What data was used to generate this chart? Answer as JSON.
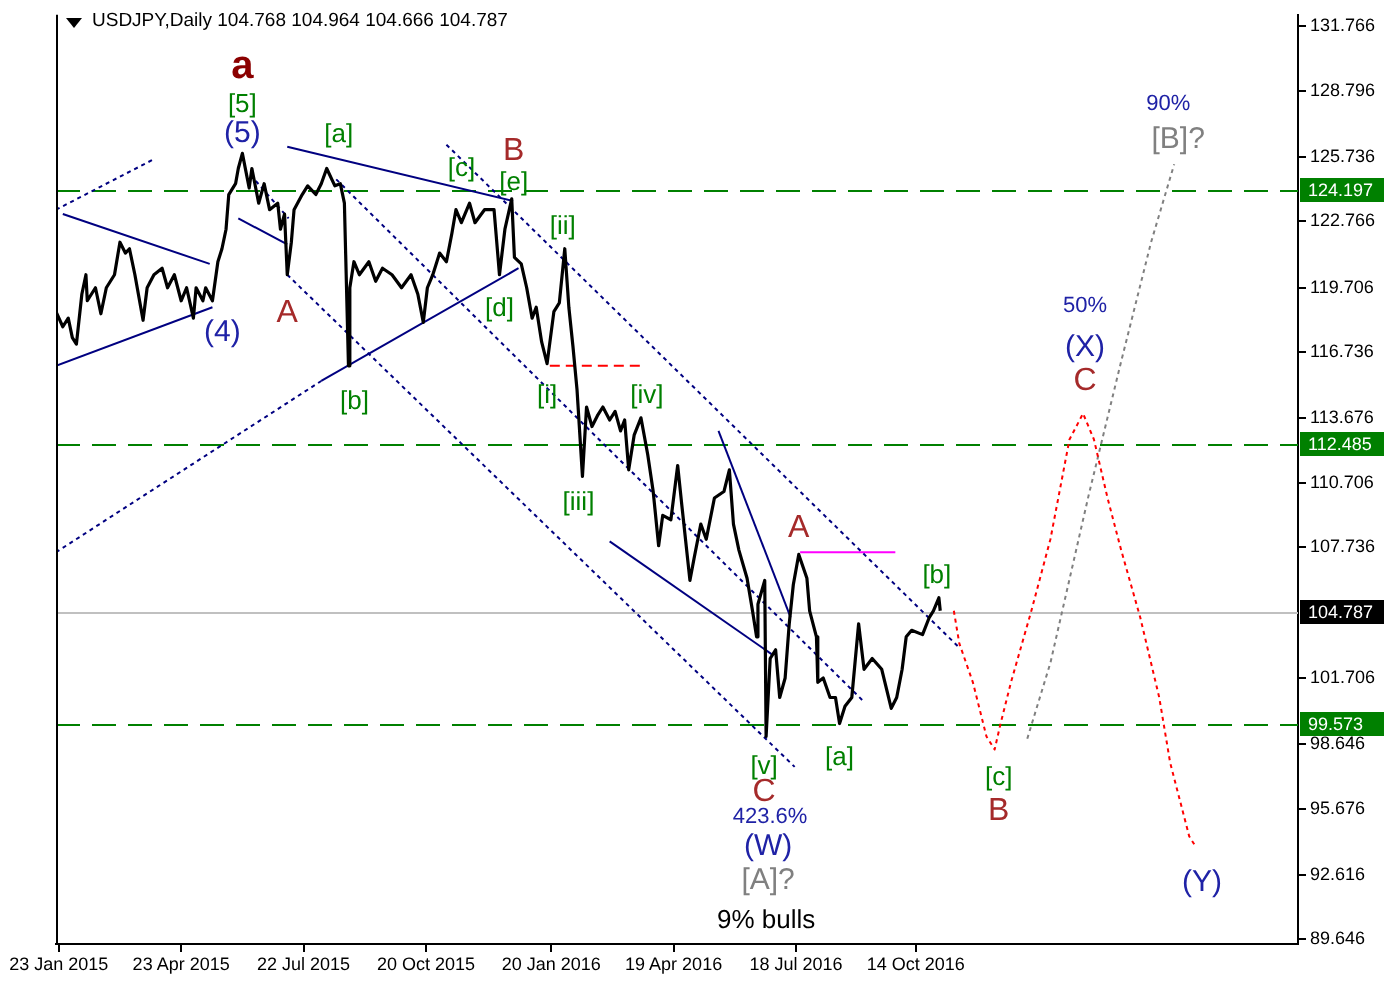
{
  "chart_data": {
    "type": "line",
    "title": "USDJPY,Daily 104.768 104.964 104.666 104.787",
    "xlim": [
      "2015-01-21",
      "2017-07-22"
    ],
    "xticks": [
      {
        "value": "2015-01-23",
        "label": "23 Jan 2015"
      },
      {
        "value": "2015-04-23",
        "label": "23 Apr 2015"
      },
      {
        "value": "2015-07-22",
        "label": "22 Jul 2015"
      },
      {
        "value": "2015-10-20",
        "label": "20 Oct 2015"
      },
      {
        "value": "2016-01-20",
        "label": "20 Jan 2016"
      },
      {
        "value": "2016-04-19",
        "label": "19 Apr 2016"
      },
      {
        "value": "2016-07-18",
        "label": "18 Jul 2016"
      },
      {
        "value": "2016-10-14",
        "label": "14 Oct 2016"
      }
    ],
    "ylim": [
      89.43,
      132.29
    ],
    "yticks": [
      131.766,
      128.796,
      125.736,
      122.766,
      119.706,
      116.736,
      113.676,
      110.706,
      107.736,
      101.706,
      98.646,
      95.676,
      92.616,
      89.646
    ],
    "series": [
      {
        "color": "#000000",
        "x": [
          "2015-01-21",
          "2015-01-26",
          "2015-01-30",
          "2015-02-02",
          "2015-02-05",
          "2015-02-09",
          "2015-02-12",
          "2015-02-13",
          "2015-02-19",
          "2015-02-23",
          "2015-02-27",
          "2015-03-05",
          "2015-03-09",
          "2015-03-13",
          "2015-03-16",
          "2015-03-20",
          "2015-03-26",
          "2015-03-29",
          "2015-04-03",
          "2015-04-09",
          "2015-04-13",
          "2015-04-18",
          "2015-04-23",
          "2015-04-27",
          "2015-05-02",
          "2015-05-04",
          "2015-05-09",
          "2015-05-11",
          "2015-05-16",
          "2015-05-20",
          "2015-05-23",
          "2015-05-26",
          "2015-05-28",
          "2015-06-02",
          "2015-06-04",
          "2015-06-07",
          "2015-06-12",
          "2015-06-14",
          "2015-06-19",
          "2015-06-23",
          "2015-06-27",
          "2015-07-03",
          "2015-07-05",
          "2015-07-08",
          "2015-07-10",
          "2015-07-13",
          "2015-07-15",
          "2015-07-21",
          "2015-07-25",
          "2015-07-31",
          "2015-08-04",
          "2015-08-08",
          "2015-08-14",
          "2015-08-18",
          "2015-08-21",
          "2015-08-24",
          "2015-08-25",
          "2015-08-28",
          "2015-09-01",
          "2015-09-08",
          "2015-09-13",
          "2015-09-18",
          "2015-09-25",
          "2015-10-02",
          "2015-10-09",
          "2015-10-14",
          "2015-10-18",
          "2015-10-21",
          "2015-10-25",
          "2015-10-30",
          "2015-11-04",
          "2015-11-08",
          "2015-11-11",
          "2015-11-15",
          "2015-11-21",
          "2015-11-25",
          "2015-12-02",
          "2015-12-09",
          "2015-12-13",
          "2015-12-17",
          "2015-12-22",
          "2015-12-24",
          "2015-12-29",
          "2016-01-02",
          "2016-01-06",
          "2016-01-09",
          "2016-01-13",
          "2016-01-17",
          "2016-01-22",
          "2016-01-26",
          "2016-01-30",
          "2016-02-02",
          "2016-02-05",
          "2016-02-08",
          "2016-02-12",
          "2016-02-15",
          "2016-02-19",
          "2016-02-23",
          "2016-02-27",
          "2016-03-03",
          "2016-03-07",
          "2016-03-11",
          "2016-03-14",
          "2016-03-17",
          "2016-03-21",
          "2016-03-26",
          "2016-03-31",
          "2016-04-04",
          "2016-04-08",
          "2016-04-11",
          "2016-04-17",
          "2016-04-22",
          "2016-04-25",
          "2016-05-01",
          "2016-05-04",
          "2016-05-09",
          "2016-05-13",
          "2016-05-19",
          "2016-05-26",
          "2016-05-30",
          "2016-06-02",
          "2016-06-06",
          "2016-06-12",
          "2016-06-16",
          "2016-06-19",
          "2016-06-20",
          "2016-06-25",
          "2016-06-26",
          "2016-06-29",
          "2016-07-03",
          "2016-07-06",
          "2016-07-10",
          "2016-07-13",
          "2016-07-16",
          "2016-07-20",
          "2016-07-26",
          "2016-07-28",
          "2016-08-02",
          "2016-08-03",
          "2016-08-07",
          "2016-08-12",
          "2016-08-16",
          "2016-08-19",
          "2016-08-23",
          "2016-08-28",
          "2016-09-02",
          "2016-09-06",
          "2016-09-12",
          "2016-09-19",
          "2016-09-26",
          "2016-09-30",
          "2016-10-04",
          "2016-10-07",
          "2016-10-11",
          "2016-10-19",
          "2016-10-24",
          "2016-10-27",
          "2016-10-31",
          "2016-11-01"
        ],
        "values": [
          118.6,
          117.9,
          118.3,
          117.4,
          117.1,
          119.4,
          120.3,
          119.1,
          119.7,
          118.5,
          119.7,
          120.3,
          121.8,
          121.3,
          121.5,
          120.3,
          118.2,
          119.7,
          120.3,
          120.6,
          119.7,
          120.3,
          119.1,
          119.7,
          118.3,
          119.7,
          119.1,
          119.7,
          119.1,
          120.9,
          121.5,
          122.4,
          124.0,
          124.5,
          125.2,
          125.9,
          124.3,
          125.2,
          123.6,
          124.5,
          123.3,
          123.6,
          122.4,
          123.1,
          120.3,
          121.8,
          123.3,
          124.0,
          124.4,
          124.0,
          124.5,
          125.2,
          124.4,
          124.5,
          123.6,
          116.1,
          119.7,
          120.9,
          120.3,
          120.9,
          120.0,
          120.6,
          120.3,
          119.7,
          120.3,
          119.4,
          118.1,
          119.7,
          120.3,
          121.3,
          120.9,
          122.2,
          123.3,
          122.7,
          123.6,
          122.7,
          123.3,
          123.3,
          120.3,
          122.4,
          123.8,
          121.1,
          120.8,
          119.7,
          118.3,
          118.8,
          117.2,
          116.2,
          118.6,
          119.0,
          121.5,
          118.8,
          117.0,
          115.0,
          111.0,
          114.2,
          113.3,
          113.8,
          114.2,
          113.6,
          114.0,
          113.1,
          113.6,
          111.3,
          112.9,
          113.7,
          112.0,
          110.3,
          107.8,
          109.2,
          109.0,
          111.5,
          109.7,
          106.2,
          107.2,
          108.8,
          108.1,
          110.0,
          110.3,
          111.3,
          108.8,
          107.6,
          106.3,
          104.8,
          103.6,
          105.1,
          106.2,
          99.0,
          102.6,
          103.0,
          100.8,
          101.7,
          104.2,
          106.0,
          107.4,
          106.3,
          104.8,
          103.6,
          101.5,
          101.7,
          100.8,
          100.8,
          99.6,
          100.4,
          100.8,
          104.2,
          102.1,
          102.6,
          102.1,
          100.3,
          100.8,
          102.1,
          103.6,
          103.9,
          103.7,
          104.5,
          104.8,
          105.4,
          104.8
        ]
      },
      {
        "color": "#000080",
        "x": [
          "2015-01-26",
          "2015-05-14"
        ],
        "values": [
          123.1,
          120.8
        ]
      },
      {
        "color": "#000080",
        "x": [
          "2015-01-21",
          "2015-05-16"
        ],
        "values": [
          116.1,
          118.8
        ]
      },
      {
        "color": "#000080",
        "line_style": "dotted",
        "x": [
          "2015-01-21",
          "2015-04-02"
        ],
        "values": [
          123.3,
          125.6
        ]
      },
      {
        "color": "#000080",
        "line_style": "dotted",
        "x": [
          "2015-06-13",
          "2015-07-11"
        ],
        "values": [
          124.9,
          122.9
        ]
      },
      {
        "color": "#000080",
        "x": [
          "2015-06-04",
          "2015-07-10"
        ],
        "values": [
          122.9,
          121.7
        ]
      },
      {
        "color": "#000080",
        "x": [
          "2015-07-10",
          "2015-12-23"
        ],
        "values": [
          126.2,
          123.7
        ]
      },
      {
        "color": "#000080",
        "x": [
          "2015-08-04",
          "2015-12-27"
        ],
        "values": [
          115.4,
          120.6
        ]
      },
      {
        "color": "#000080",
        "line_style": "dotted",
        "x": [
          "2015-01-21",
          "2015-08-04"
        ],
        "values": [
          107.5,
          115.4
        ]
      },
      {
        "color": "#000080",
        "line_style": "dotted",
        "x": [
          "2015-07-10",
          "2016-07-17"
        ],
        "values": [
          120.3,
          97.6
        ]
      },
      {
        "color": "#000080",
        "line_style": "dotted",
        "x": [
          "2015-08-15",
          "2016-09-06"
        ],
        "values": [
          124.7,
          100.6
        ]
      },
      {
        "color": "#000080",
        "line_style": "dotted",
        "x": [
          "2015-11-04",
          "2016-11-15"
        ],
        "values": [
          126.3,
          103.1
        ]
      },
      {
        "color": "#000080",
        "x": [
          "2016-03-03",
          "2016-06-30"
        ],
        "values": [
          108.0,
          102.8
        ]
      },
      {
        "color": "#000080",
        "x": [
          "2016-05-22",
          "2016-07-14"
        ],
        "values": [
          113.1,
          104.5
        ]
      },
      {
        "color": "#ff00ff",
        "x": [
          "2016-07-21",
          "2016-09-29"
        ],
        "values": [
          107.5,
          107.5
        ]
      },
      {
        "color": "#ff0000",
        "line_style": "dashed",
        "x": [
          "2016-01-19",
          "2016-03-28"
        ],
        "values": [
          116.1,
          116.1
        ]
      },
      {
        "color": "#ff0000",
        "line_style": "dotted",
        "x": [
          "2016-11-11",
          "2016-11-15",
          "2016-11-25",
          "2016-12-05",
          "2016-12-11",
          "2016-12-15",
          "2016-12-23",
          "2017-01-07",
          "2017-01-21",
          "2017-02-04",
          "2017-02-14",
          "2017-02-22",
          "2017-03-04",
          "2017-03-14",
          "2017-03-28",
          "2017-04-11",
          "2017-04-19",
          "2017-05-03",
          "2017-05-08"
        ],
        "values": [
          104.8,
          103.3,
          101.5,
          99.0,
          98.4,
          99.5,
          101.5,
          104.8,
          108.1,
          112.7,
          113.9,
          112.7,
          110.0,
          107.6,
          104.5,
          100.8,
          97.8,
          94.4,
          93.9
        ]
      },
      {
        "color": "#808080",
        "line_style": "dotted",
        "x": [
          "2017-01-04",
          "2017-01-21",
          "2017-02-18",
          "2017-03-14",
          "2017-04-05",
          "2017-04-22"
        ],
        "values": [
          98.9,
          102.4,
          110.1,
          116.3,
          121.8,
          125.4
        ]
      }
    ],
    "ref_lines": [
      {
        "axis": "y",
        "value": 124.197,
        "label": "124.197",
        "color": "#008000",
        "line_style": "dashed"
      },
      {
        "axis": "y",
        "value": 112.485,
        "label": "112.485",
        "color": "#008000",
        "line_style": "dashed"
      },
      {
        "axis": "y",
        "value": 99.573,
        "label": "99.573",
        "color": "#008000",
        "line_style": "dashed"
      },
      {
        "axis": "y",
        "value": 104.787,
        "label": "104.787",
        "color": "#c0c0c0",
        "line_style": "solid"
      }
    ],
    "annotations": [
      {
        "text": "a",
        "x": "2015-06-07",
        "y": 125.9
      },
      {
        "text": "[5]",
        "x": "2015-06-07",
        "y": 125.9
      },
      {
        "text": "(5)",
        "x": "2015-06-07",
        "y": 125.9
      },
      {
        "text": "(4)",
        "x": "2015-05-16",
        "y": 119.1
      },
      {
        "text": "A",
        "x": "2015-07-10",
        "y": 120.3
      },
      {
        "text": "[a]",
        "x": "2015-08-08",
        "y": 125.2
      },
      {
        "text": "[b]",
        "x": "2015-08-24",
        "y": 116.1
      },
      {
        "text": "[c]",
        "x": "2015-11-21",
        "y": 123.6
      },
      {
        "text": "B",
        "x": "2015-12-22",
        "y": 123.8
      },
      {
        "text": "[e]",
        "x": "2015-12-22",
        "y": 123.8
      },
      {
        "text": "[d]",
        "x": "2015-12-13",
        "y": 120.3
      },
      {
        "text": "[i]",
        "x": "2016-01-17",
        "y": 116.2
      },
      {
        "text": "[ii]",
        "x": "2016-01-30",
        "y": 121.5
      },
      {
        "text": "[iii]",
        "x": "2016-02-12",
        "y": 111.0
      },
      {
        "text": "[iv]",
        "x": "2016-03-26",
        "y": 113.7
      },
      {
        "text": "[v]",
        "x": "2016-06-26",
        "y": 99.0
      },
      {
        "text": "C",
        "x": "2016-06-26",
        "y": 99.0
      },
      "423.6%",
      "(W)",
      "[A]?",
      "9% bulls",
      {
        "text": "A",
        "x": "2016-07-20",
        "y": 107.4
      },
      {
        "text": "[a]",
        "x": "2016-08-19",
        "y": 99.6
      },
      {
        "text": "[b]",
        "x": "2016-10-31",
        "y": 105.4
      },
      {
        "text": "[c]",
        "x": "2016-12-11",
        "y": 98.4
      },
      {
        "text": "B",
        "x": "2016-12-11",
        "y": 98.4
      },
      "50%",
      {
        "text": "(X)",
        "x": "2017-02-14",
        "y": 113.9
      },
      {
        "text": "C",
        "x": "2017-02-14",
        "y": 113.9
      },
      {
        "text": "90%",
        "x": "2017-04-22",
        "y": 125.4
      },
      {
        "text": "[B]?",
        "x": "2017-04-22",
        "y": 125.4
      },
      {
        "text": "(Y)",
        "x": "2017-05-08",
        "y": 93.9
      }
    ]
  }
}
